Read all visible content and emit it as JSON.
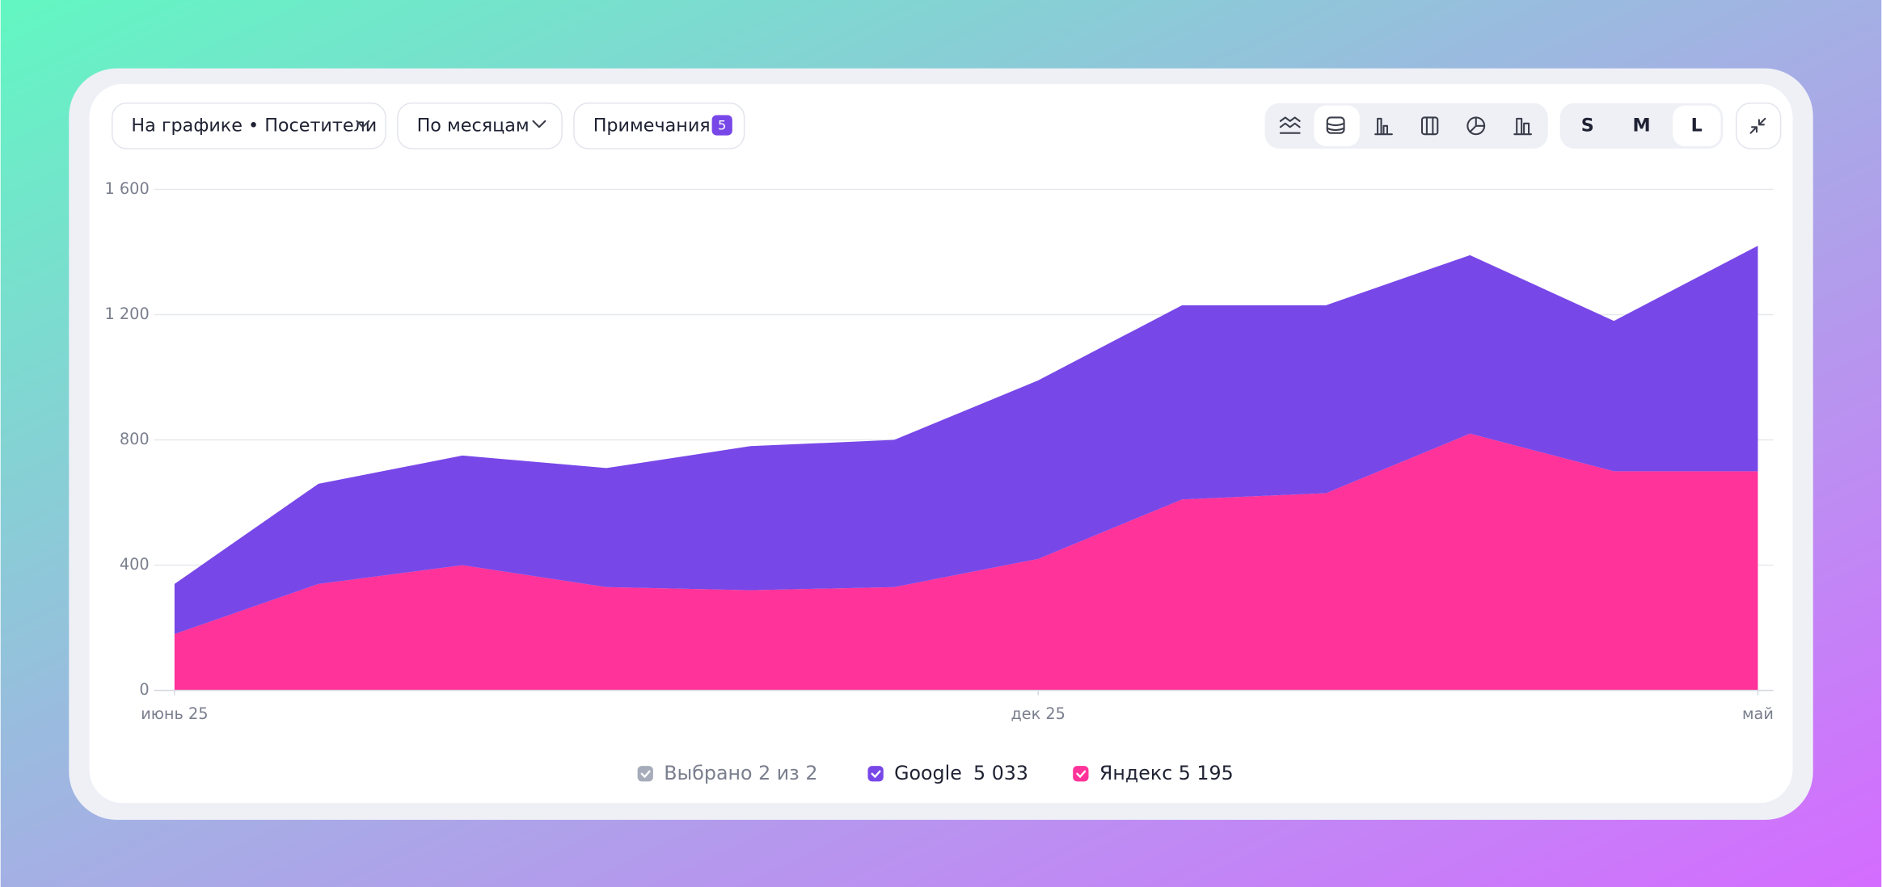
{
  "toolbar": {
    "metric_selector": "На графике • Посетители",
    "period_selector": "По месяцам",
    "notes": "Примечания",
    "notes_count": "5",
    "sizes": [
      "S",
      "M",
      "L"
    ]
  },
  "chart_data": {
    "type": "area",
    "stacked": true,
    "categories": [
      "июнь 25",
      null,
      null,
      null,
      null,
      null,
      "дек 25",
      null,
      null,
      null,
      null,
      "май"
    ],
    "series": [
      {
        "name": "Яндекс",
        "color": "#ff3399",
        "values": [
          180,
          340,
          400,
          330,
          320,
          330,
          420,
          610,
          630,
          820,
          700,
          700
        ],
        "total": "5 195"
      },
      {
        "name": "Google",
        "color": "#7847e8",
        "values": [
          160,
          320,
          350,
          380,
          460,
          470,
          570,
          620,
          600,
          570,
          480,
          720
        ],
        "total": "5 033"
      }
    ],
    "ylim": [
      0,
      1600
    ],
    "yticks": [
      0,
      400,
      800,
      {
        "value": 1200,
        "label": "1 200"
      },
      {
        "value": 1600,
        "label": "1 600"
      }
    ],
    "grid": true
  },
  "legend": {
    "summary": "Выбрано 2 из 2"
  }
}
